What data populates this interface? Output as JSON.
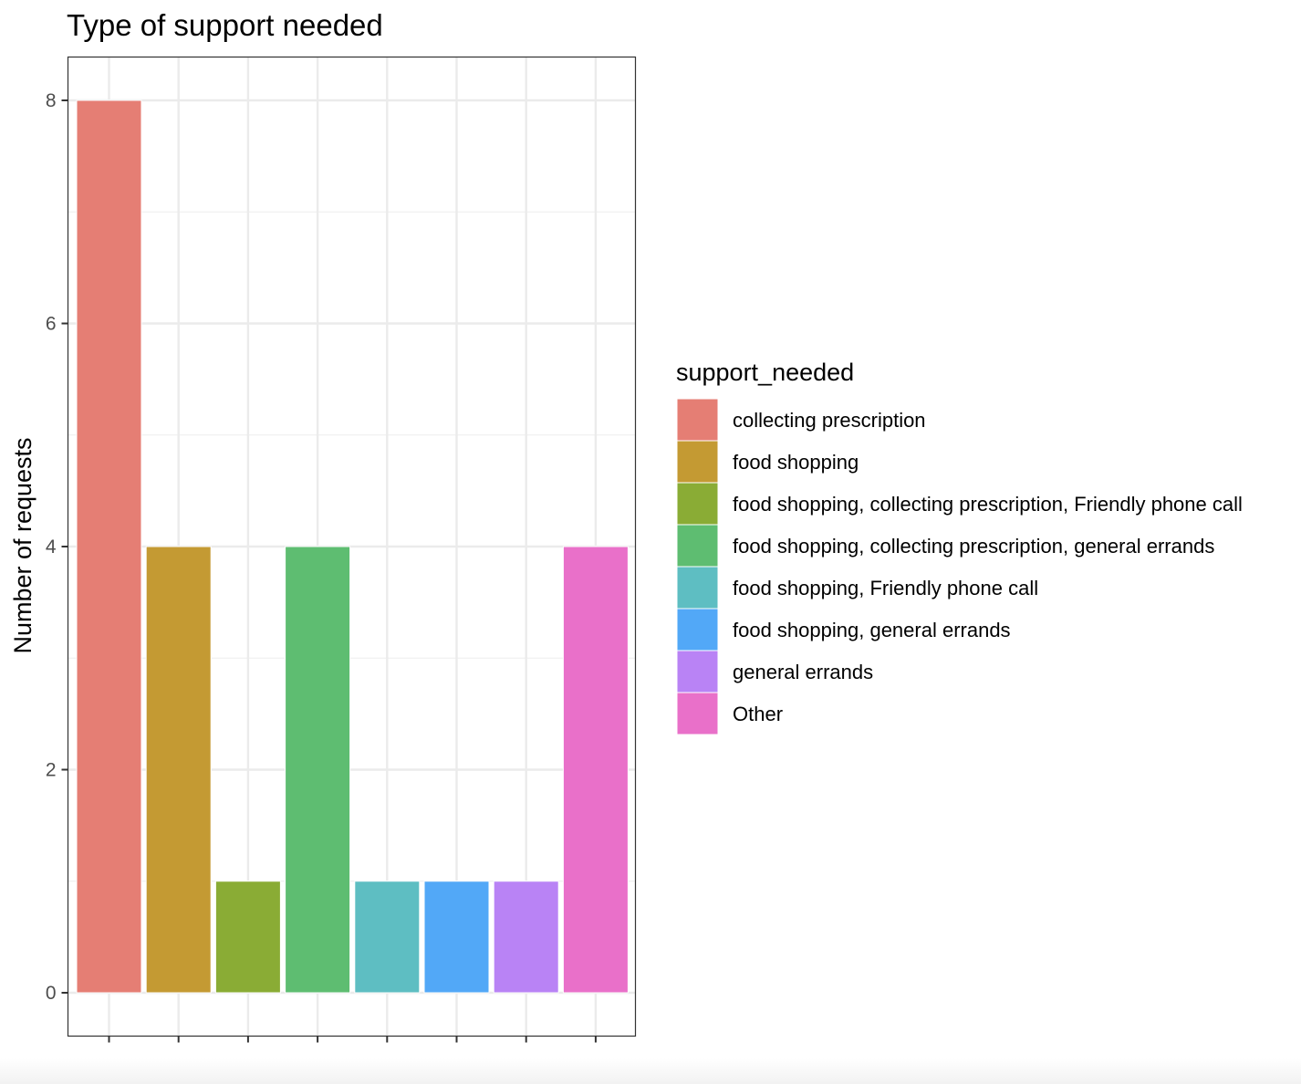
{
  "chart_data": {
    "type": "bar",
    "title": "Type of support needed",
    "xlabel": "",
    "ylabel": "Number of requests",
    "ylim": [
      -0.4,
      8.4
    ],
    "yticks": [
      0,
      2,
      4,
      6,
      8
    ],
    "grid": true,
    "legend": {
      "title": "support_needed",
      "position": "right"
    },
    "categories": [
      "collecting prescription",
      "food shopping",
      "food shopping, collecting prescription, Friendly phone call",
      "food shopping, collecting prescription, general errands",
      "food shopping, Friendly phone call",
      "food shopping, general errands",
      "general errands",
      "Other"
    ],
    "values": [
      8,
      4,
      1,
      4,
      1,
      1,
      1,
      4
    ],
    "colors": [
      "#E57E74",
      "#C49A33",
      "#8AAC35",
      "#5EBD71",
      "#5EBEC2",
      "#52A8F7",
      "#B983F5",
      "#E970C9"
    ]
  }
}
